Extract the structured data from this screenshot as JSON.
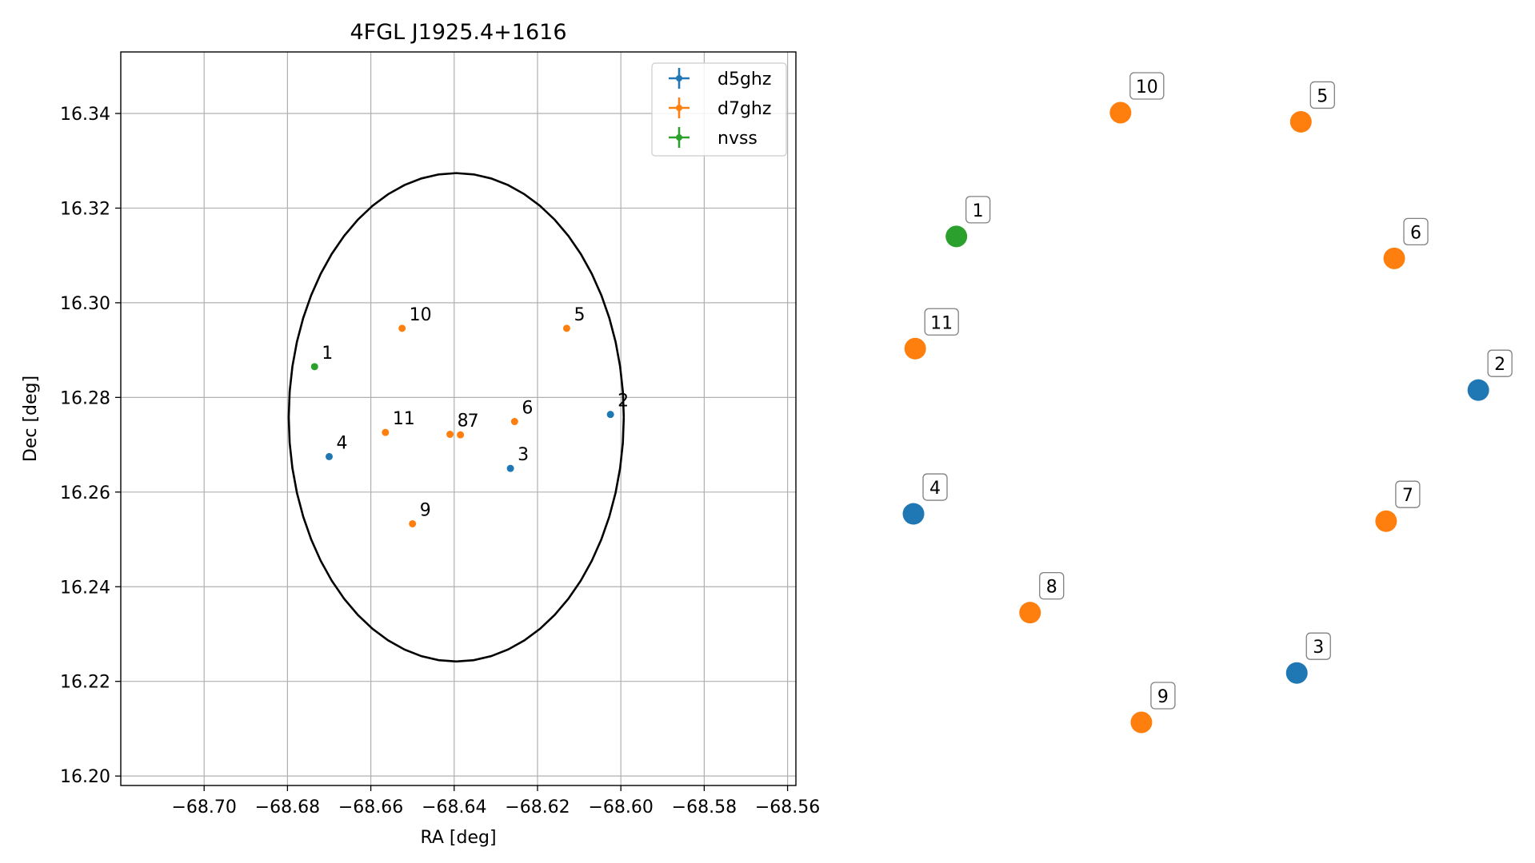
{
  "colors": {
    "d5ghz": "#1f77b4",
    "d7ghz": "#ff7f0e",
    "nvss": "#2ca02c",
    "grid": "#b0b0b0",
    "ellipse": "#000000"
  },
  "chart_data": [
    {
      "type": "scatter",
      "title": "4FGL J1925.4+1616",
      "xlabel": "RA [deg]",
      "ylabel": "Dec [deg]",
      "xlim": [
        -68.72,
        -68.558
      ],
      "ylim": [
        16.198,
        16.353
      ],
      "x_ticks": [
        -68.7,
        -68.68,
        -68.66,
        -68.64,
        -68.62,
        -68.6,
        -68.58,
        -68.56
      ],
      "x_tick_labels": [
        "−68.70",
        "−68.68",
        "−68.66",
        "−68.64",
        "−68.62",
        "−68.60",
        "−68.58",
        "−68.56"
      ],
      "y_ticks": [
        16.2,
        16.22,
        16.24,
        16.26,
        16.28,
        16.3,
        16.32,
        16.34
      ],
      "y_tick_labels": [
        "16.20",
        "16.22",
        "16.24",
        "16.26",
        "16.28",
        "16.30",
        "16.32",
        "16.34"
      ],
      "grid": true,
      "legend": {
        "position": "top-right",
        "entries": [
          "d5ghz",
          "d7ghz",
          "nvss"
        ]
      },
      "ellipse": {
        "center": [
          -68.6395,
          16.2758
        ],
        "half_width": 0.0402,
        "half_height": 0.0516
      },
      "series": [
        {
          "name": "d5ghz",
          "points": [
            {
              "label": "2",
              "x": -68.6025,
              "y": 16.2764
            },
            {
              "label": "3",
              "x": -68.6265,
              "y": 16.265
            },
            {
              "label": "4",
              "x": -68.67,
              "y": 16.2675
            }
          ]
        },
        {
          "name": "d7ghz",
          "points": [
            {
              "label": "5",
              "x": -68.613,
              "y": 16.2946
            },
            {
              "label": "6",
              "x": -68.6255,
              "y": 16.2749
            },
            {
              "label": "7",
              "x": -68.6385,
              "y": 16.2721
            },
            {
              "label": "8",
              "x": -68.641,
              "y": 16.2722
            },
            {
              "label": "9",
              "x": -68.65,
              "y": 16.2533
            },
            {
              "label": "10",
              "x": -68.6525,
              "y": 16.2946
            },
            {
              "label": "11",
              "x": -68.6565,
              "y": 16.2726
            }
          ]
        },
        {
          "name": "nvss",
          "points": [
            {
              "label": "1",
              "x": -68.6735,
              "y": 16.2865
            }
          ]
        }
      ]
    },
    {
      "type": "scatter",
      "axes_visible": false,
      "xlim": [
        0,
        1
      ],
      "ylim": [
        0,
        1
      ],
      "series": [
        {
          "name": "d5ghz",
          "points": [
            {
              "label": "2",
              "x": 0.974,
              "y": 0.545
            },
            {
              "label": "3",
              "x": 0.661,
              "y": 0.081
            },
            {
              "label": "4",
              "x": 0.0,
              "y": 0.342
            }
          ]
        },
        {
          "name": "d7ghz",
          "points": [
            {
              "label": "5",
              "x": 0.668,
              "y": 0.985
            },
            {
              "label": "6",
              "x": 0.829,
              "y": 0.761
            },
            {
              "label": "7",
              "x": 0.815,
              "y": 0.33
            },
            {
              "label": "8",
              "x": 0.201,
              "y": 0.18
            },
            {
              "label": "9",
              "x": 0.393,
              "y": 0.0
            },
            {
              "label": "10",
              "x": 0.357,
              "y": 1.0
            },
            {
              "label": "11",
              "x": 0.003,
              "y": 0.613
            }
          ]
        },
        {
          "name": "nvss",
          "points": [
            {
              "label": "1",
              "x": 0.074,
              "y": 0.797
            }
          ]
        }
      ]
    }
  ]
}
